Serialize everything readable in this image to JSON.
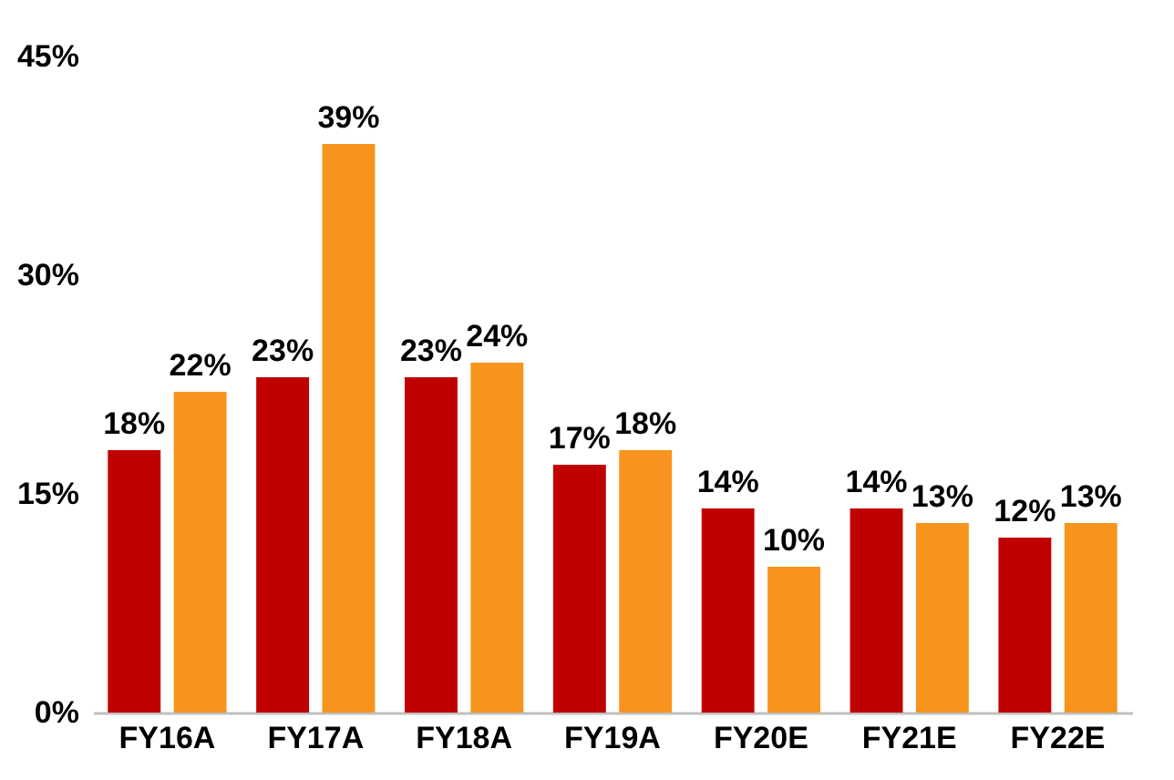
{
  "chart_data": {
    "type": "bar",
    "categories": [
      "FY16A",
      "FY17A",
      "FY18A",
      "FY19A",
      "FY20E",
      "FY21E",
      "FY22E"
    ],
    "series": [
      {
        "color": "#c00000",
        "values": [
          18,
          23,
          23,
          17,
          14,
          14,
          12
        ],
        "value_labels": [
          "18%",
          "23%",
          "23%",
          "17%",
          "14%",
          "14%",
          "12%"
        ]
      },
      {
        "color": "#f7941d",
        "values": [
          22,
          39,
          24,
          18,
          10,
          13,
          13
        ],
        "value_labels": [
          "22%",
          "39%",
          "24%",
          "18%",
          "10%",
          "13%",
          "13%"
        ]
      }
    ],
    "ylim": [
      0,
      45
    ],
    "yticks": [
      {
        "value": 0,
        "label": "0%"
      },
      {
        "value": 15,
        "label": "15%"
      },
      {
        "value": 30,
        "label": "30%"
      },
      {
        "value": 45,
        "label": "45%"
      }
    ],
    "grid": false
  }
}
